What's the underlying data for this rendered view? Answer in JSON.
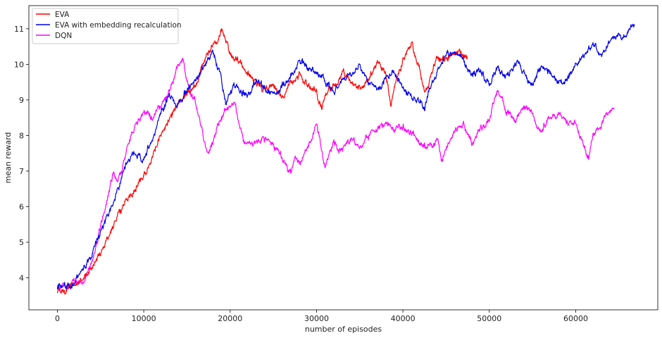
{
  "chart_data": {
    "type": "line",
    "title": "",
    "xlabel": "number of episodes",
    "ylabel": "mean reward",
    "xlim": [
      -3300,
      69500
    ],
    "ylim": [
      3.1,
      11.65
    ],
    "xticks": [
      0,
      10000,
      20000,
      30000,
      40000,
      50000,
      60000
    ],
    "yticks": [
      4,
      5,
      6,
      7,
      8,
      9,
      10,
      11
    ],
    "xtick_labels": [
      "0",
      "10000",
      "20000",
      "30000",
      "40000",
      "50000",
      "60000"
    ],
    "ytick_labels": [
      "4",
      "5",
      "6",
      "7",
      "8",
      "9",
      "10",
      "11"
    ],
    "grid": false,
    "legend_position": "top-left",
    "series": [
      {
        "name": "EVA",
        "color": "#ff0000",
        "x": [
          0,
          1000,
          2000,
          3000,
          4000,
          5000,
          6000,
          7000,
          8000,
          9000,
          10000,
          11000,
          12000,
          13000,
          14000,
          15000,
          16000,
          17000,
          17800,
          18500,
          19000,
          20000,
          21000,
          22000,
          23000,
          24000,
          25000,
          26000,
          27000,
          28000,
          29000,
          30000,
          30600,
          31000,
          32000,
          33000,
          34000,
          35000,
          36000,
          37000,
          38000,
          38600,
          39000,
          40000,
          41000,
          42000,
          42500,
          43000,
          44000,
          45000,
          46000,
          47000,
          47500
        ],
        "y": [
          3.6,
          3.7,
          3.8,
          4.0,
          4.3,
          4.7,
          5.2,
          5.8,
          6.2,
          6.5,
          6.9,
          7.4,
          8.0,
          8.5,
          8.9,
          9.2,
          9.4,
          10.1,
          10.5,
          10.6,
          11.0,
          10.3,
          10.1,
          9.8,
          9.5,
          9.3,
          9.4,
          9.1,
          9.5,
          9.7,
          9.4,
          9.2,
          8.8,
          9.2,
          9.4,
          9.8,
          9.5,
          9.3,
          9.6,
          10.0,
          9.8,
          8.9,
          9.4,
          10.1,
          10.6,
          9.8,
          9.3,
          9.5,
          10.2,
          10.1,
          10.4,
          10.3,
          10.2
        ]
      },
      {
        "name": "EVA with embedding recalculation",
        "color": "#0000ee",
        "x": [
          0,
          1000,
          2000,
          3000,
          4000,
          5000,
          6000,
          7000,
          8000,
          9000,
          10000,
          11000,
          12000,
          13000,
          14000,
          15000,
          16000,
          17000,
          18000,
          19000,
          19500,
          20000,
          21000,
          22000,
          23000,
          24000,
          25000,
          26000,
          27000,
          28000,
          29000,
          30000,
          31000,
          32000,
          33000,
          34000,
          35000,
          36000,
          37000,
          38000,
          39000,
          40000,
          41000,
          42000,
          42500,
          43000,
          44000,
          45000,
          46000,
          47000,
          48000,
          49000,
          50000,
          51000,
          52000,
          53000,
          54000,
          55000,
          56000,
          57000,
          58000,
          59000,
          60000,
          61000,
          62000,
          63000,
          64000,
          65000,
          66000,
          66800
        ],
        "y": [
          3.7,
          3.75,
          3.9,
          4.3,
          4.6,
          5.3,
          5.8,
          6.5,
          7.2,
          7.5,
          7.3,
          7.9,
          8.6,
          9.1,
          8.9,
          9.3,
          9.5,
          10.0,
          10.3,
          9.6,
          8.9,
          9.3,
          9.4,
          9.1,
          9.6,
          9.3,
          9.1,
          9.4,
          9.6,
          10.1,
          9.9,
          9.8,
          9.5,
          9.3,
          9.6,
          9.7,
          10.0,
          9.5,
          9.3,
          9.6,
          9.8,
          9.3,
          9.1,
          9.0,
          8.7,
          9.3,
          9.8,
          10.3,
          10.4,
          10.1,
          9.7,
          9.8,
          9.5,
          9.9,
          9.6,
          10.0,
          9.8,
          9.4,
          9.9,
          9.7,
          9.5,
          9.6,
          10.0,
          10.3,
          10.5,
          10.3,
          10.6,
          10.8,
          10.9,
          11.1
        ]
      },
      {
        "name": "DQN",
        "color": "#ff00ff",
        "x": [
          0,
          1000,
          2000,
          3000,
          4000,
          5000,
          6000,
          6500,
          7000,
          8000,
          9000,
          10000,
          11000,
          12000,
          13000,
          14000,
          14500,
          15000,
          16000,
          17000,
          17500,
          18500,
          19500,
          20500,
          21500,
          22500,
          23500,
          24500,
          25500,
          26500,
          27000,
          27500,
          28000,
          29000,
          30000,
          31000,
          32000,
          33000,
          34000,
          35000,
          36000,
          37000,
          38000,
          39000,
          40000,
          41000,
          42000,
          43000,
          44000,
          44500,
          45000,
          46000,
          47000,
          48000,
          49000,
          50000,
          51000,
          52000,
          53000,
          54000,
          55000,
          56000,
          57000,
          58000,
          59000,
          60000,
          61000,
          61500,
          62000,
          63000,
          64000,
          64500
        ],
        "y": [
          3.7,
          3.75,
          3.8,
          3.85,
          4.5,
          5.5,
          6.4,
          6.9,
          6.7,
          7.6,
          8.3,
          8.6,
          8.5,
          8.8,
          9.3,
          10.0,
          10.2,
          9.5,
          8.9,
          7.8,
          7.5,
          8.2,
          8.7,
          8.9,
          7.9,
          7.7,
          7.9,
          7.8,
          7.6,
          7.2,
          6.9,
          7.3,
          7.2,
          7.6,
          8.3,
          7.2,
          7.8,
          7.6,
          7.9,
          7.7,
          8.0,
          8.1,
          8.4,
          8.2,
          8.3,
          8.1,
          7.7,
          7.7,
          7.9,
          7.3,
          7.6,
          8.1,
          8.3,
          7.8,
          8.2,
          8.4,
          9.3,
          8.6,
          8.4,
          8.9,
          8.5,
          8.1,
          8.5,
          8.6,
          8.3,
          8.4,
          7.6,
          7.3,
          8.1,
          8.4,
          8.7,
          8.6
        ]
      }
    ]
  }
}
